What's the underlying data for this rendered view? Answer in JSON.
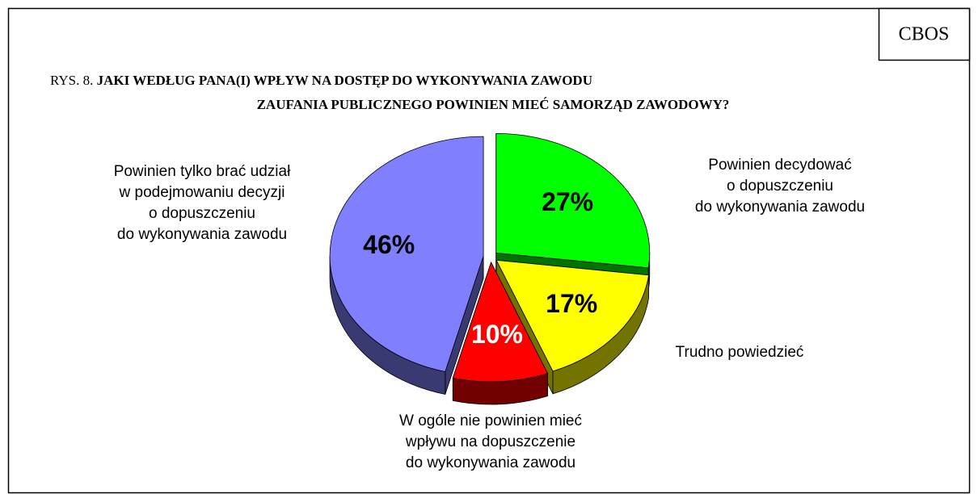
{
  "chart_data": {
    "type": "pie",
    "source": "CBOS",
    "figure_label": "RYS. 8.",
    "title": [
      "JAKI WEDŁUG PANA(I) WPŁYW NA DOSTĘP DO WYKONYWANIA ZAWODU",
      "ZAUFANIA PUBLICZNEGO POWINIEN MIEĆ SAMORZĄD ZAWODOWY?"
    ],
    "categories": [
      [
        "Powinien decydować",
        "o dopuszczeniu",
        "do wykonywania zawodu"
      ],
      [
        "Trudno powiedzieć"
      ],
      [
        "W ogóle nie powinien mieć",
        "wpływu na dopuszczenie",
        "do wykonywania zawodu"
      ],
      [
        "Powinien tylko brać udział",
        "w podejmowaniu decyzji",
        "o dopuszczeniu",
        "do wykonywania zawodu"
      ]
    ],
    "values": [
      27,
      17,
      10,
      46
    ],
    "value_labels": [
      "27%",
      "17%",
      "10%",
      "46%"
    ],
    "colors": [
      "#00ff00",
      "#ffff00",
      "#ff0000",
      "#8080ff"
    ]
  }
}
